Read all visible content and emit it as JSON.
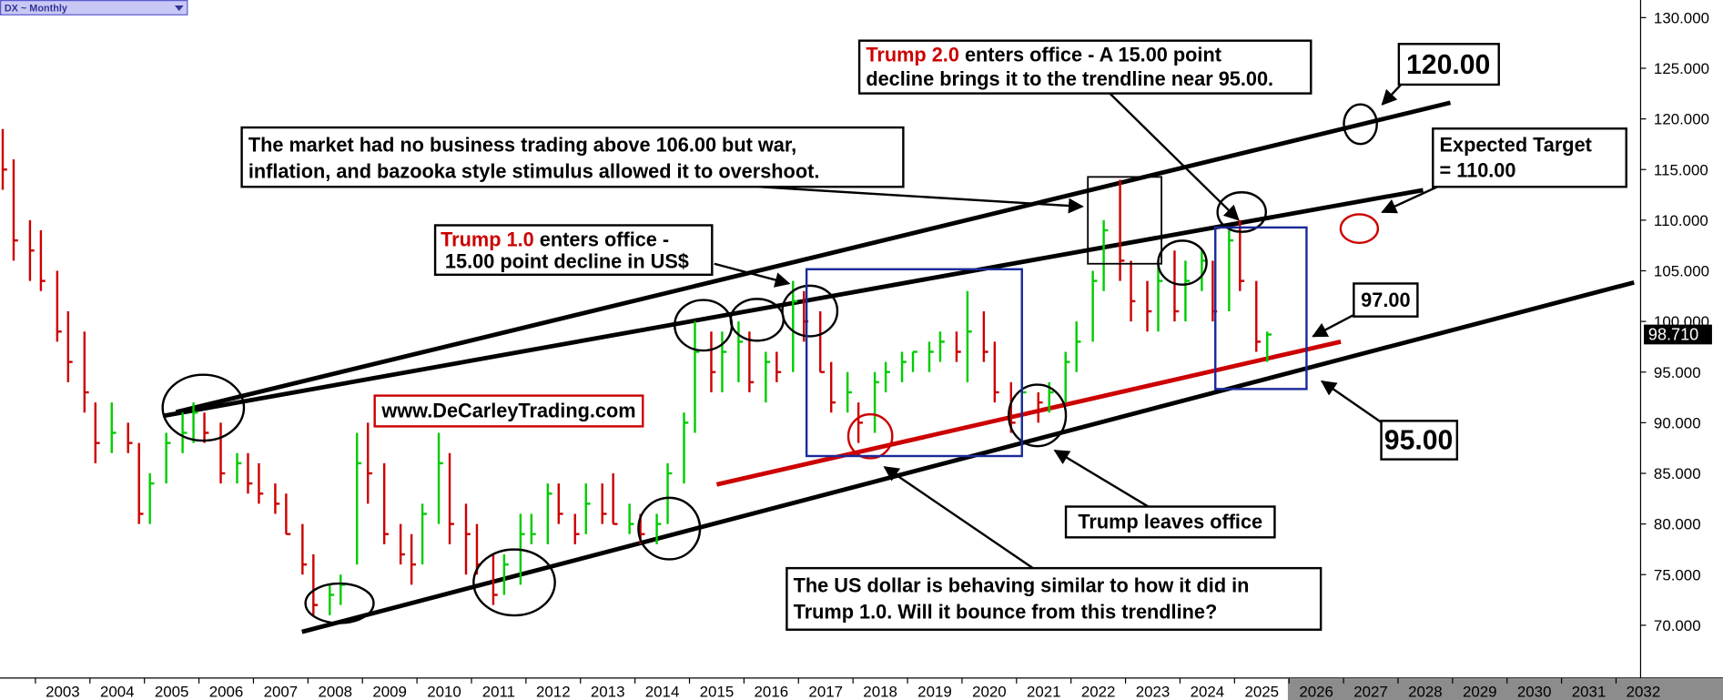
{
  "chart_data": {
    "type": "ohlc",
    "title": "DX ~ Monthly",
    "x": [
      2002.4,
      2002.6,
      2002.9,
      2003.1,
      2003.4,
      2003.6,
      2003.9,
      2004.1,
      2004.4,
      2004.7,
      2004.9,
      2005.1,
      2005.4,
      2005.7,
      2005.9,
      2006.1,
      2006.4,
      2006.7,
      2006.9,
      2007.1,
      2007.4,
      2007.6,
      2007.9,
      2008.1,
      2008.4,
      2008.6,
      2008.9,
      2009.1,
      2009.4,
      2009.7,
      2009.9,
      2010.1,
      2010.4,
      2010.6,
      2010.9,
      2011.1,
      2011.4,
      2011.6,
      2011.9,
      2012.1,
      2012.4,
      2012.6,
      2012.9,
      2013.1,
      2013.4,
      2013.6,
      2013.9,
      2014.1,
      2014.4,
      2014.6,
      2014.9,
      2015.1,
      2015.4,
      2015.6,
      2015.9,
      2016.1,
      2016.4,
      2016.6,
      2016.9,
      2017.1,
      2017.4,
      2017.6,
      2017.9,
      2018.1,
      2018.4,
      2018.6,
      2018.9,
      2019.1,
      2019.4,
      2019.6,
      2019.9,
      2020.1,
      2020.4,
      2020.6,
      2020.9,
      2021.1,
      2021.4,
      2021.6,
      2021.9,
      2022.1,
      2022.4,
      2022.6,
      2022.9,
      2023.1,
      2023.4,
      2023.6,
      2023.9,
      2024.1,
      2024.4,
      2024.6,
      2024.9,
      2025.1,
      2025.4,
      2025.6
    ],
    "high": [
      119,
      116,
      110,
      109,
      105,
      101,
      99,
      92,
      92,
      90,
      88,
      85,
      89,
      91,
      92,
      91,
      90,
      87,
      87,
      86,
      84,
      83,
      80,
      77,
      74,
      75,
      89,
      90,
      86,
      80,
      79,
      82,
      89,
      87,
      82,
      80,
      77,
      77,
      81,
      81,
      84,
      84,
      81,
      84,
      84,
      85,
      82,
      81,
      81,
      86,
      91,
      100,
      99,
      99,
      100,
      99,
      97,
      97,
      104,
      103,
      101,
      96,
      95,
      92,
      95,
      96,
      97,
      97,
      98,
      99,
      99,
      103,
      101,
      98,
      94,
      94,
      93,
      94,
      97,
      100,
      105,
      110,
      114,
      106,
      104,
      106,
      107,
      106,
      107,
      106,
      109,
      110,
      104,
      99
    ],
    "low": [
      113,
      106,
      104,
      103,
      98,
      94,
      91,
      86,
      87,
      87,
      80,
      80,
      84,
      87,
      88,
      88,
      84,
      84,
      83,
      82,
      81,
      79,
      75,
      71,
      71,
      72,
      76,
      82,
      78,
      76,
      74,
      76,
      80,
      78,
      75,
      75,
      72,
      73,
      74,
      78,
      78,
      80,
      78,
      79,
      80,
      80,
      79,
      78,
      78,
      80,
      84,
      89,
      93,
      93,
      94,
      93,
      92,
      94,
      95,
      98,
      95,
      91,
      91,
      88,
      89,
      93,
      94,
      95,
      95,
      96,
      96,
      94,
      96,
      92,
      89,
      89,
      90,
      91,
      92,
      95,
      98,
      103,
      104,
      100,
      99,
      99,
      100,
      100,
      103,
      100,
      101,
      103,
      97,
      96
    ],
    "close": [
      115,
      108,
      107,
      104,
      99,
      96,
      93,
      88,
      89,
      88,
      81,
      84,
      88,
      89,
      91,
      89,
      85,
      86,
      84,
      83,
      82,
      79,
      76,
      72,
      73,
      74,
      86,
      85,
      79,
      77,
      76,
      81,
      86,
      80,
      79,
      76,
      73,
      76,
      79,
      79,
      83,
      81,
      79,
      82,
      81,
      80,
      80,
      79,
      80,
      85,
      90,
      97,
      95,
      97,
      98,
      94,
      96,
      95,
      102,
      100,
      95,
      92,
      93,
      90,
      94,
      95,
      96,
      97,
      97,
      98,
      97,
      99,
      97,
      93,
      90,
      93,
      92,
      93,
      96,
      98,
      104,
      109,
      106,
      102,
      101,
      104,
      101,
      104,
      106,
      101,
      108,
      104,
      98,
      98.71
    ],
    "up_color": "#00cc00",
    "down_color": "#cc0000",
    "last_value": {
      "value": 98.71,
      "label": "98.710"
    },
    "xlim": [
      2002.35,
      2032.45
    ],
    "xticks": [
      2003,
      2004,
      2005,
      2006,
      2007,
      2008,
      2009,
      2010,
      2011,
      2012,
      2013,
      2014,
      2015,
      2016,
      2017,
      2018,
      2019,
      2020,
      2021,
      2022,
      2023,
      2024,
      2025,
      2026,
      2027,
      2028,
      2029,
      2030,
      2031,
      2032
    ],
    "ylim": [
      64.79,
      131.74
    ],
    "yticks": [
      {
        "value": 70,
        "label": "70.000"
      },
      {
        "value": 75,
        "label": "75.000"
      },
      {
        "value": 80,
        "label": "80.000"
      },
      {
        "value": 85,
        "label": "85.000"
      },
      {
        "value": 90,
        "label": "90.000"
      },
      {
        "value": 95,
        "label": "95.000"
      },
      {
        "value": 100,
        "label": "100.000"
      },
      {
        "value": 105,
        "label": "105.000"
      },
      {
        "value": 110,
        "label": "110.000"
      },
      {
        "value": 115,
        "label": "115.000"
      },
      {
        "value": 120,
        "label": "120.000"
      },
      {
        "value": 125,
        "label": "125.000"
      },
      {
        "value": 130,
        "label": "130.000"
      }
    ],
    "trendlines": [
      {
        "x": [
          2005.58,
          2028.96
        ],
        "y": [
          91.05,
          121.6
        ],
        "color": "#000000"
      },
      {
        "x": [
          2005.37,
          2028.46
        ],
        "y": [
          90.7,
          112.97
        ],
        "color": "#000000"
      },
      {
        "x": [
          2007.89,
          2032.33
        ],
        "y": [
          69.35,
          103.85
        ],
        "color": "#000000"
      },
      {
        "x": [
          2015.5,
          2026.95
        ],
        "y": [
          83.9,
          98.0
        ],
        "color": "#cc0000"
      }
    ],
    "annotations": [
      {
        "lines": [
          "The market had no business trading above 106.00 but war,",
          "inflation, and bazooka style stimulus allowed it to overshoot."
        ]
      },
      {
        "highlight": "Trump 1.0",
        "lines": [
          " enters office -",
          "15.00 point decline in US$"
        ]
      },
      {
        "highlight": "Trump 2.0",
        "lines": [
          " enters office - A 15.00 point",
          "decline brings it to the trendline near 95.00."
        ]
      },
      {
        "lines": [
          "120.00"
        ]
      },
      {
        "lines": [
          "Expected Target",
          "= 110.00"
        ]
      },
      {
        "lines": [
          "97.00"
        ]
      },
      {
        "lines": [
          "95.00"
        ]
      },
      {
        "lines": [
          "www.DeCarleyTrading.com"
        ]
      },
      {
        "lines": [
          "Trump leaves office"
        ]
      },
      {
        "lines": [
          "The US dollar is behaving similar to how it did in",
          "Trump 1.0. Will it bounce from this trendline?"
        ]
      }
    ]
  }
}
